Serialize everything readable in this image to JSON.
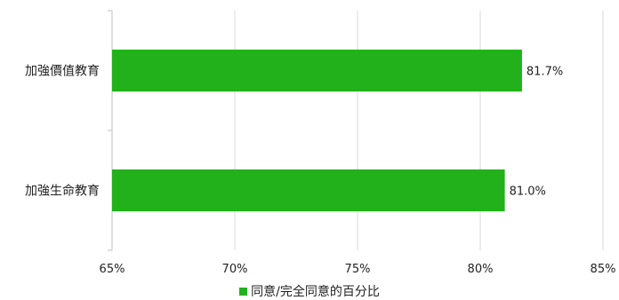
{
  "chart_data": {
    "type": "bar",
    "orientation": "horizontal",
    "categories": [
      "加強價值教育",
      "加強生命教育"
    ],
    "series": [
      {
        "name": "同意/完全同意的百分比",
        "values": [
          81.7,
          81.0
        ],
        "color": "#22b11a"
      }
    ],
    "data_labels": [
      "81.7%",
      "81.0%"
    ],
    "xlim": [
      65,
      85
    ],
    "xticks": [
      "65%",
      "70%",
      "75%",
      "80%",
      "85%"
    ],
    "grid": true,
    "legend": "bottom"
  }
}
